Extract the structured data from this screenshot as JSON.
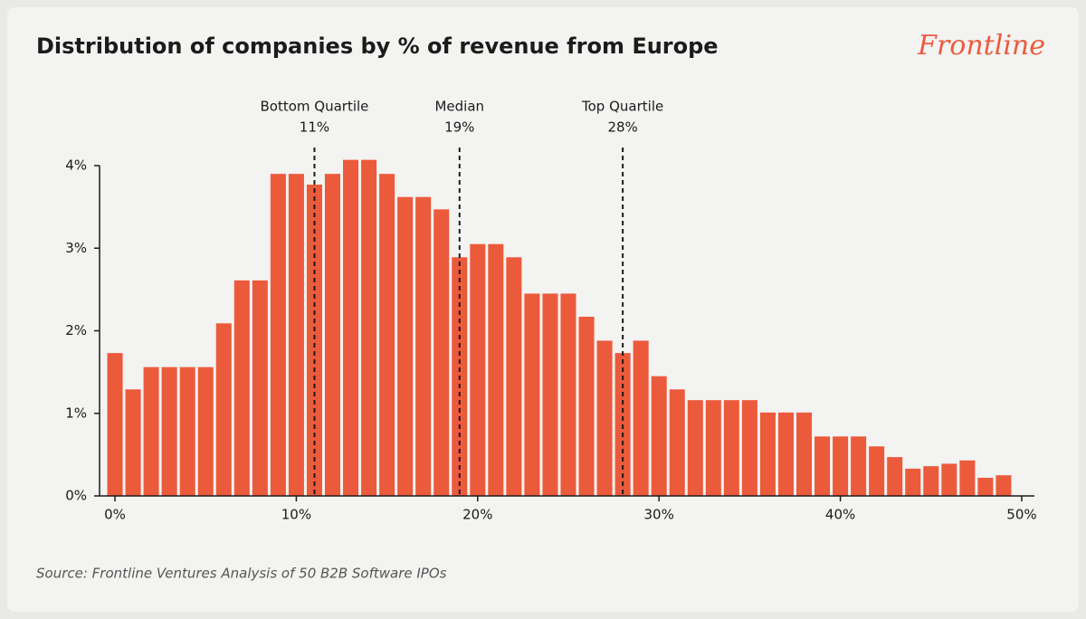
{
  "chart_data": {
    "type": "histogram",
    "title": "Distribution of companies by % of revenue from Europe",
    "brand": "Frontline",
    "source": "Source: Frontline Ventures Analysis of 50 B2B Software IPOs",
    "color": "#ec5a3c",
    "bins": [
      -0.5,
      0.5,
      1.5,
      2.5,
      3.5,
      4.5,
      5.5,
      6.5,
      7.5,
      8.5,
      9.5,
      10.5,
      11.5,
      12.5,
      13.5,
      14.5,
      15.5,
      16.5,
      17.5,
      18.5,
      19.5,
      20.5,
      21.5,
      22.5,
      23.5,
      24.5,
      25.5,
      26.5,
      27.5,
      28.5,
      29.5,
      30.5,
      31.5,
      32.5,
      33.5,
      34.5,
      35.5,
      36.5,
      37.5,
      38.5,
      39.5,
      40.5,
      41.5,
      42.5,
      43.5,
      44.5,
      45.5,
      46.5,
      47.5,
      48.5,
      49.5
    ],
    "values": [
      1.73,
      1.29,
      1.56,
      1.56,
      1.56,
      1.56,
      2.09,
      2.61,
      2.61,
      3.9,
      3.9,
      3.77,
      3.9,
      4.07,
      4.07,
      3.9,
      3.62,
      3.62,
      3.47,
      2.89,
      3.05,
      3.05,
      2.89,
      2.45,
      2.45,
      2.45,
      2.17,
      1.88,
      1.73,
      1.88,
      1.45,
      1.29,
      1.16,
      1.16,
      1.16,
      1.16,
      1.01,
      1.01,
      1.01,
      0.72,
      0.72,
      0.72,
      0.6,
      0.47,
      0.33,
      0.36,
      0.39,
      0.43,
      0.22,
      0.25
    ],
    "xlim": [
      -0.85,
      50.7
    ],
    "xticks": [
      {
        "value": 0,
        "label": "0%"
      },
      {
        "value": 10,
        "label": "10%"
      },
      {
        "value": 20,
        "label": "20%"
      },
      {
        "value": 30,
        "label": "30%"
      },
      {
        "value": 40,
        "label": "40%"
      },
      {
        "value": 50,
        "label": "50%"
      }
    ],
    "ylim": [
      0,
      4
    ],
    "yticks": [
      {
        "value": 0,
        "label": "0%"
      },
      {
        "value": 1,
        "label": "1%"
      },
      {
        "value": 2,
        "label": "2%"
      },
      {
        "value": 3,
        "label": "3%"
      },
      {
        "value": 4,
        "label": "4%"
      }
    ],
    "annotations": [
      {
        "text": "Bottom Quartile",
        "x": 11,
        "x_label": "11%"
      },
      {
        "text": "Median",
        "x": 19,
        "x_label": "19%"
      },
      {
        "text": "Top Quartile",
        "x": 28,
        "x_label": "28%"
      }
    ]
  }
}
